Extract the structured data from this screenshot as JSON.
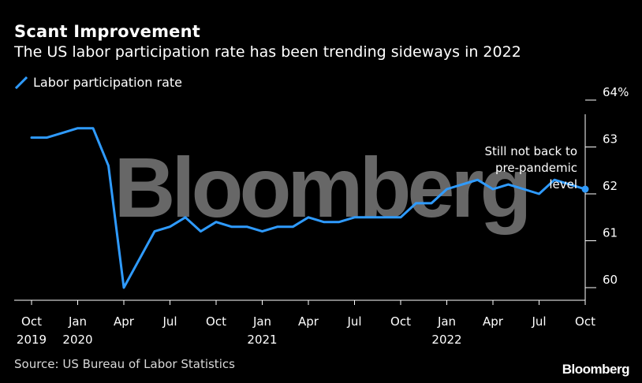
{
  "title": "Scant Improvement",
  "subtitle": "The US labor participation rate has been trending sideways in 2022",
  "source": "Source: US Bureau of Labor Statistics",
  "brand": "Bloomberg",
  "watermark": "Bloomberg",
  "colors": {
    "line": "#2f9bff",
    "background": "#000000",
    "axis": "#ffffff"
  },
  "chart_data": {
    "type": "line",
    "title": "Scant Improvement",
    "subtitle": "The US labor participation rate has been trending sideways in 2022",
    "ylabel": "",
    "xlabel": "",
    "ylim": [
      59.8,
      64
    ],
    "y_ticks": [
      60,
      61,
      62,
      63,
      64
    ],
    "y_tick_labels": [
      "60",
      "61",
      "62",
      "63",
      "64%"
    ],
    "grid": false,
    "legend_position": "top-left",
    "x_ticks": [
      {
        "label": "Oct",
        "sub": "2019"
      },
      {
        "label": "Jan",
        "sub": "2020"
      },
      {
        "label": "Apr",
        "sub": ""
      },
      {
        "label": "Jul",
        "sub": ""
      },
      {
        "label": "Oct",
        "sub": ""
      },
      {
        "label": "Jan",
        "sub": "2021"
      },
      {
        "label": "Apr",
        "sub": ""
      },
      {
        "label": "Jul",
        "sub": ""
      },
      {
        "label": "Oct",
        "sub": ""
      },
      {
        "label": "Jan",
        "sub": "2022"
      },
      {
        "label": "Apr",
        "sub": ""
      },
      {
        "label": "Jul",
        "sub": ""
      },
      {
        "label": "Oct",
        "sub": ""
      }
    ],
    "series": [
      {
        "name": "Labor participation rate",
        "x": [
          "2019-10",
          "2019-11",
          "2019-12",
          "2020-01",
          "2020-02",
          "2020-03",
          "2020-04",
          "2020-05",
          "2020-06",
          "2020-07",
          "2020-08",
          "2020-09",
          "2020-10",
          "2020-11",
          "2020-12",
          "2021-01",
          "2021-02",
          "2021-03",
          "2021-04",
          "2021-05",
          "2021-06",
          "2021-07",
          "2021-08",
          "2021-09",
          "2021-10",
          "2021-11",
          "2021-12",
          "2022-01",
          "2022-02",
          "2022-03",
          "2022-04",
          "2022-05",
          "2022-06",
          "2022-07",
          "2022-08",
          "2022-09",
          "2022-10"
        ],
        "values": [
          63.2,
          63.2,
          63.3,
          63.4,
          63.4,
          62.6,
          60.0,
          60.6,
          61.2,
          61.3,
          61.5,
          61.2,
          61.4,
          61.3,
          61.3,
          61.2,
          61.3,
          61.3,
          61.5,
          61.4,
          61.4,
          61.5,
          61.5,
          61.5,
          61.5,
          61.8,
          61.8,
          62.1,
          62.2,
          62.3,
          62.1,
          62.2,
          62.1,
          62.0,
          62.3,
          62.2,
          62.1
        ]
      }
    ],
    "annotation": [
      "Still not back to",
      "pre-pandemic",
      "level"
    ]
  }
}
